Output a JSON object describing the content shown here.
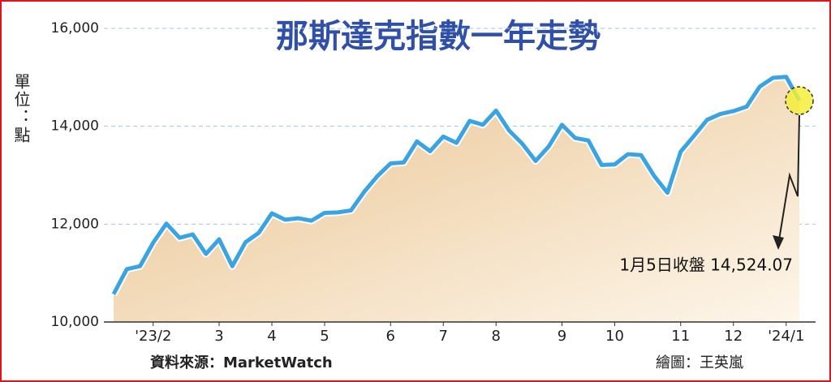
{
  "chart_data": {
    "type": "line",
    "title": "那斯達克指數一年走勢",
    "y_label": "單位：點",
    "categories": [
      null,
      null,
      null,
      "'23/2",
      null,
      null,
      null,
      null,
      "3",
      null,
      null,
      null,
      "4",
      null,
      null,
      null,
      "5",
      null,
      null,
      null,
      null,
      "6",
      null,
      null,
      null,
      "7",
      null,
      null,
      null,
      "8",
      null,
      null,
      null,
      null,
      "9",
      null,
      null,
      null,
      "10",
      null,
      null,
      null,
      null,
      "11",
      null,
      null,
      null,
      "12",
      null,
      null,
      null,
      "'24/1",
      null
    ],
    "series": [
      {
        "name": "那斯達克指數",
        "color": "#3aa3e3",
        "values": [
          10570,
          11080,
          11140,
          11620,
          12010,
          11720,
          11790,
          11390,
          11690,
          11140,
          11630,
          11820,
          12220,
          12090,
          12120,
          12070,
          12230,
          12240,
          12280,
          12660,
          12980,
          13240,
          13260,
          13690,
          13490,
          13790,
          13660,
          14110,
          14030,
          14320,
          13910,
          13640,
          13290,
          13590,
          14030,
          13760,
          13710,
          13210,
          13220,
          13430,
          13410,
          12980,
          12640,
          13480,
          13800,
          14130,
          14250,
          14310,
          14400,
          14810,
          14990,
          15010,
          14524.07
        ]
      }
    ],
    "ylim": [
      10000,
      16000
    ],
    "yticks": [
      {
        "value": 10000,
        "label": "10,000"
      },
      {
        "value": 12000,
        "label": "12,000"
      },
      {
        "value": 14000,
        "label": "14,000"
      },
      {
        "value": 16000,
        "label": "16,000"
      }
    ],
    "grid": true,
    "annotation": "1月5日收盤 14,524.07",
    "source": "資料來源：MarketWatch",
    "credit": "繪圖：王英嵐"
  }
}
